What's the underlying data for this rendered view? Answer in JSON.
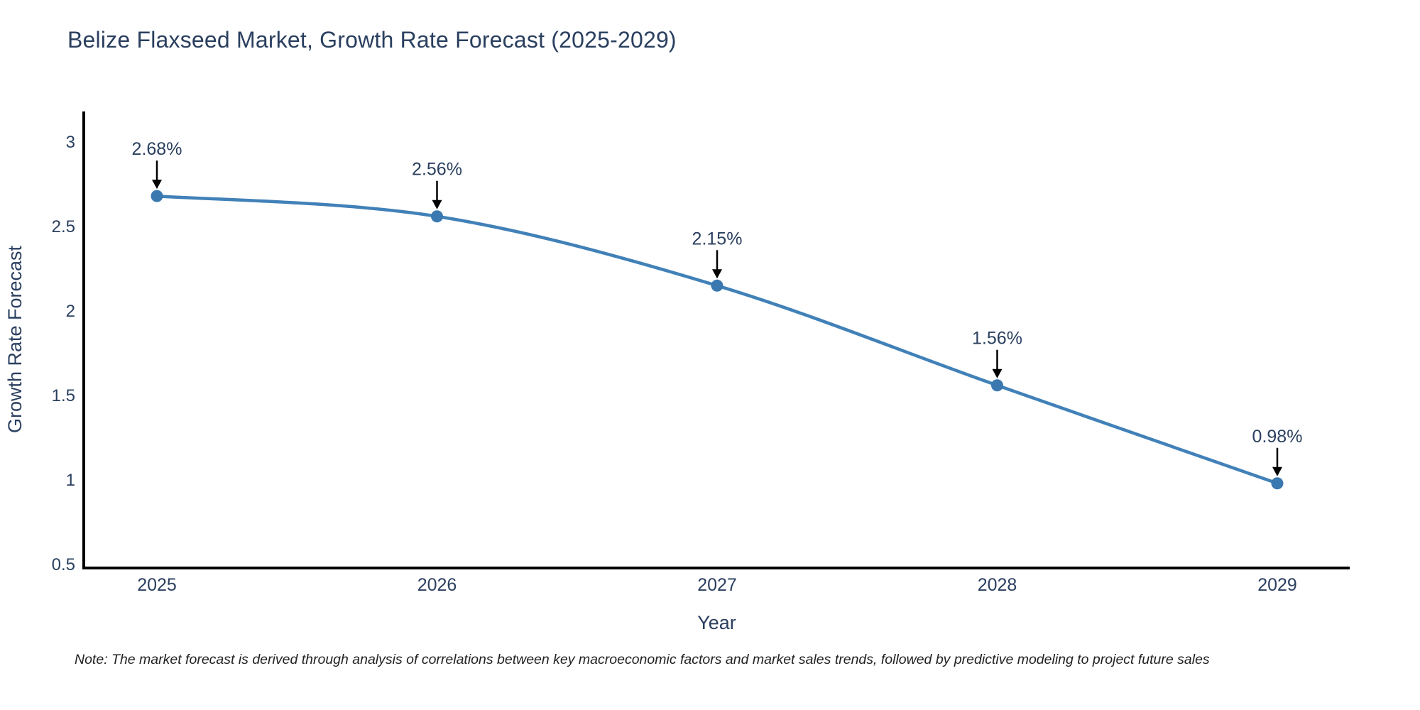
{
  "chart_data": {
    "type": "line",
    "title": "Belize Flaxseed Market, Growth Rate Forecast (2025-2029)",
    "xlabel": "Year",
    "ylabel": "Growth Rate Forecast",
    "categories": [
      "2025",
      "2026",
      "2027",
      "2028",
      "2029"
    ],
    "values": [
      2.68,
      2.56,
      2.15,
      1.56,
      0.98
    ],
    "point_labels": [
      "2.68%",
      "2.56%",
      "2.15%",
      "1.56%",
      "0.98%"
    ],
    "y_ticks": [
      0.5,
      1,
      1.5,
      2,
      2.5,
      3
    ],
    "ylim": [
      0.48,
      3.21
    ],
    "line_shape": "spline",
    "grid": false,
    "legend": "none",
    "colors": {
      "line": "#4181b8",
      "marker": "#3a78b0",
      "axis": "#000000",
      "text": "#2a3f5f",
      "annotation_arrow": "#000000",
      "note_text": "#222222"
    }
  },
  "note": {
    "text": "Note: The market forecast is derived through analysis of correlations between key macroeconomic factors and market sales trends, followed by predictive modeling to project future sales"
  }
}
